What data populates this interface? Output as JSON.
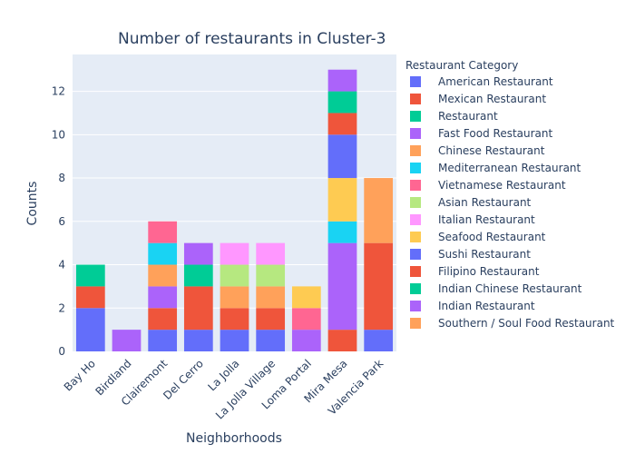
{
  "chart_data": {
    "type": "bar",
    "stacked": true,
    "title": "Number of restaurants in Cluster-3",
    "xlabel": "Neighborhoods",
    "ylabel": "Counts",
    "ylim": [
      0,
      13.7
    ],
    "yticks": [
      0,
      2,
      4,
      6,
      8,
      10,
      12
    ],
    "grid": true,
    "plot_background": "#E5ECF6",
    "legend_title": "Restaurant Category",
    "legend_position": "right",
    "categories": [
      "Bay Ho",
      "Birdland",
      "Clairemont",
      "Del Cerro",
      "La Jolla",
      "La Jolla Village",
      "Loma Portal",
      "Mira Mesa",
      "Valencia Park"
    ],
    "series": [
      {
        "name": "American Restaurant",
        "color": "#636EFA",
        "values": [
          2,
          0,
          1,
          1,
          1,
          1,
          0,
          0,
          1
        ]
      },
      {
        "name": "Mexican Restaurant",
        "color": "#EF553B",
        "values": [
          1,
          0,
          1,
          2,
          1,
          1,
          0,
          1,
          4
        ]
      },
      {
        "name": "Restaurant",
        "color": "#00CC96",
        "values": [
          1,
          0,
          0,
          1,
          0,
          0,
          0,
          0,
          0
        ]
      },
      {
        "name": "Fast Food Restaurant",
        "color": "#AB63FA",
        "values": [
          0,
          1,
          1,
          1,
          0,
          0,
          1,
          4,
          0
        ]
      },
      {
        "name": "Chinese Restaurant",
        "color": "#FFA15A",
        "values": [
          0,
          0,
          1,
          0,
          1,
          1,
          0,
          0,
          3
        ]
      },
      {
        "name": "Mediterranean Restaurant",
        "color": "#19D3F3",
        "values": [
          0,
          0,
          1,
          0,
          0,
          0,
          0,
          1,
          0
        ]
      },
      {
        "name": "Vietnamese Restaurant",
        "color": "#FF6692",
        "values": [
          0,
          0,
          1,
          0,
          0,
          0,
          1,
          0,
          0
        ]
      },
      {
        "name": "Asian Restaurant",
        "color": "#B6E880",
        "values": [
          0,
          0,
          0,
          0,
          1,
          1,
          0,
          0,
          0
        ]
      },
      {
        "name": "Italian Restaurant",
        "color": "#FF97FF",
        "values": [
          0,
          0,
          0,
          0,
          1,
          1,
          0,
          0,
          0
        ]
      },
      {
        "name": "Seafood Restaurant",
        "color": "#FECB52",
        "values": [
          0,
          0,
          0,
          0,
          0,
          0,
          1,
          2,
          0
        ]
      },
      {
        "name": "Sushi Restaurant",
        "color": "#636EFA",
        "values": [
          0,
          0,
          0,
          0,
          0,
          0,
          0,
          2,
          0
        ]
      },
      {
        "name": "Filipino Restaurant",
        "color": "#EF553B",
        "values": [
          0,
          0,
          0,
          0,
          0,
          0,
          0,
          1,
          0
        ]
      },
      {
        "name": "Indian Chinese Restaurant",
        "color": "#00CC96",
        "values": [
          0,
          0,
          0,
          0,
          0,
          0,
          0,
          1,
          0
        ]
      },
      {
        "name": "Indian Restaurant",
        "color": "#AB63FA",
        "values": [
          0,
          0,
          0,
          0,
          0,
          0,
          0,
          1,
          0
        ]
      },
      {
        "name": "Southern / Soul Food Restaurant",
        "color": "#FFA15A",
        "values": [
          0,
          0,
          0,
          0,
          0,
          0,
          0,
          0,
          0
        ]
      }
    ]
  }
}
